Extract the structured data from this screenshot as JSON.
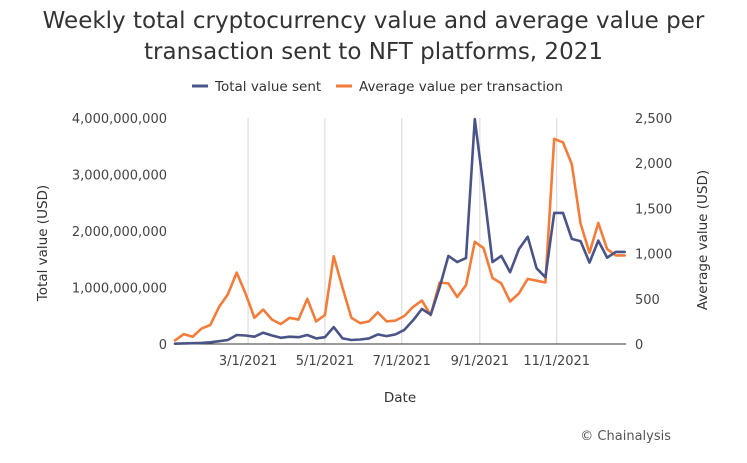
{
  "chart_data": {
    "type": "line",
    "title": "Weekly total cryptocurrency value and average value per transaction sent to NFT platforms, 2021",
    "title_lines": [
      "Weekly total cryptocurrency value and average value per",
      "transaction sent to NFT platforms, 2021"
    ],
    "xlabel": "Date",
    "ylabel_left": "Total value (USD)",
    "ylabel_right": "Average value (USD)",
    "x_tick_labels": [
      "3/1/2021",
      "5/1/2021",
      "7/1/2021",
      "9/1/2021",
      "11/1/2021"
    ],
    "x_tick_positions": [
      "2021-03-01",
      "2021-05-01",
      "2021-07-01",
      "2021-09-01",
      "2021-11-01"
    ],
    "x_range": [
      "2021-01-02",
      "2021-12-26"
    ],
    "ylim_left": [
      0,
      4000000000
    ],
    "ylim_right": [
      0,
      2500
    ],
    "left_tick_labels": [
      "0",
      "1,000,000,000",
      "2,000,000,000",
      "3,000,000,000",
      "4,000,000,000"
    ],
    "right_tick_labels": [
      "0",
      "500",
      "1,000",
      "1,500",
      "2,000",
      "2,500"
    ],
    "grid": "vertical at x ticks",
    "legend_position": "top",
    "credit": "© Chainalysis",
    "x": [
      "2021-01-02",
      "2021-01-09",
      "2021-01-16",
      "2021-01-23",
      "2021-01-30",
      "2021-02-06",
      "2021-02-13",
      "2021-02-20",
      "2021-02-27",
      "2021-03-06",
      "2021-03-13",
      "2021-03-20",
      "2021-03-27",
      "2021-04-03",
      "2021-04-10",
      "2021-04-17",
      "2021-04-24",
      "2021-05-01",
      "2021-05-08",
      "2021-05-15",
      "2021-05-22",
      "2021-05-29",
      "2021-06-05",
      "2021-06-12",
      "2021-06-19",
      "2021-06-26",
      "2021-07-03",
      "2021-07-10",
      "2021-07-17",
      "2021-07-24",
      "2021-07-31",
      "2021-08-07",
      "2021-08-14",
      "2021-08-21",
      "2021-08-28",
      "2021-09-04",
      "2021-09-11",
      "2021-09-18",
      "2021-09-25",
      "2021-10-02",
      "2021-10-09",
      "2021-10-16",
      "2021-10-23",
      "2021-10-30",
      "2021-11-06",
      "2021-11-13",
      "2021-11-20",
      "2021-11-27",
      "2021-12-04",
      "2021-12-11",
      "2021-12-18",
      "2021-12-25"
    ],
    "series": [
      {
        "name": "Total value sent",
        "axis": "left",
        "color": "#4a5488",
        "values": [
          5000000,
          10000000,
          15000000,
          20000000,
          30000000,
          50000000,
          70000000,
          160000000,
          150000000,
          130000000,
          200000000,
          150000000,
          110000000,
          130000000,
          120000000,
          160000000,
          100000000,
          120000000,
          300000000,
          100000000,
          70000000,
          80000000,
          100000000,
          170000000,
          140000000,
          170000000,
          250000000,
          420000000,
          620000000,
          520000000,
          1000000000,
          1560000000,
          1450000000,
          1520000000,
          3980000000,
          2750000000,
          1450000000,
          1560000000,
          1270000000,
          1680000000,
          1900000000,
          1340000000,
          1180000000,
          2320000000,
          2320000000,
          1860000000,
          1820000000,
          1440000000,
          1830000000,
          1530000000,
          1630000000,
          1630000000
        ]
      },
      {
        "name": "Average value per transaction",
        "axis": "right",
        "color": "#f27c3a",
        "values": [
          40,
          110,
          80,
          170,
          210,
          410,
          550,
          790,
          560,
          290,
          380,
          270,
          220,
          290,
          270,
          500,
          250,
          320,
          970,
          620,
          290,
          230,
          250,
          350,
          250,
          260,
          310,
          410,
          480,
          320,
          680,
          670,
          520,
          650,
          1130,
          1060,
          730,
          670,
          470,
          560,
          720,
          700,
          680,
          2270,
          2230,
          1990,
          1330,
          1010,
          1340,
          1050,
          980,
          980
        ]
      }
    ]
  }
}
